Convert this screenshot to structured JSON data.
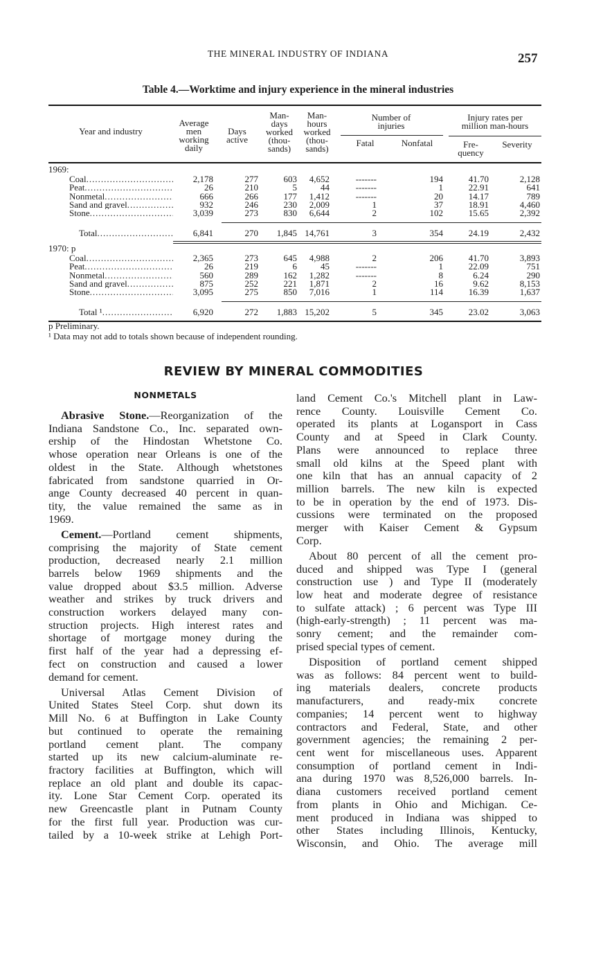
{
  "header": {
    "running_head": "THE MINERAL INDUSTRY OF INDIANA",
    "page_number": "257"
  },
  "table": {
    "title": "Table 4.—Worktime and injury experience in the mineral industries",
    "headers": {
      "year_industry": "Year and industry",
      "avg_men": [
        "Average",
        "men",
        "working",
        "daily"
      ],
      "days": [
        "Days",
        "active"
      ],
      "man_days": [
        "Man-",
        "days",
        "worked",
        "(thou-",
        "sands)"
      ],
      "man_hours": [
        "Man-",
        "hours",
        "worked",
        "(thou-",
        "sands)"
      ],
      "injuries_group": [
        "Number of",
        "injuries"
      ],
      "fatal": "Fatal",
      "nonfatal": "Nonfatal",
      "rates_group": [
        "Injury rates per",
        "million man-hours"
      ],
      "frequency": [
        "Fre-",
        "quency"
      ],
      "severity": "Severity"
    },
    "sections": [
      {
        "year": "1969:",
        "rows": [
          [
            "Coal",
            "2,178",
            "277",
            "603",
            "4,652",
            "-------",
            "194",
            "41.70",
            "2,128"
          ],
          [
            "Peat",
            "26",
            "210",
            "5",
            "44",
            "-------",
            "1",
            "22.91",
            "641"
          ],
          [
            "Nonmetal",
            "666",
            "266",
            "177",
            "1,412",
            "-------",
            "20",
            "14.17",
            "789"
          ],
          [
            "Sand and gravel",
            "932",
            "246",
            "230",
            "2,009",
            "1",
            "37",
            "18.91",
            "4,460"
          ],
          [
            "Stone",
            "3,039",
            "273",
            "830",
            "6,644",
            "2",
            "102",
            "15.65",
            "2,392"
          ]
        ],
        "total": [
          "Total",
          "6,841",
          "270",
          "1,845",
          "14,761",
          "3",
          "354",
          "24.19",
          "2,432"
        ]
      },
      {
        "year": "1970: p",
        "rows": [
          [
            "Coal",
            "2,365",
            "273",
            "645",
            "4,988",
            "2",
            "206",
            "41.70",
            "3,893"
          ],
          [
            "Peat",
            "26",
            "219",
            "6",
            "45",
            "-------",
            "1",
            "22.09",
            "751"
          ],
          [
            "Nonmetal",
            "560",
            "289",
            "162",
            "1,282",
            "-------",
            "8",
            "6.24",
            "290"
          ],
          [
            "Sand and gravel",
            "875",
            "252",
            "221",
            "1,871",
            "2",
            "16",
            "9.62",
            "8,153"
          ],
          [
            "Stone",
            "3,095",
            "275",
            "850",
            "7,016",
            "1",
            "114",
            "16.39",
            "1,637"
          ]
        ],
        "total": [
          "Total ¹",
          "6,920",
          "272",
          "1,883",
          "15,202",
          "5",
          "345",
          "23.02",
          "3,063"
        ]
      }
    ],
    "footnotes": [
      "p Preliminary.",
      "¹ Data may not add to totals shown because of independent rounding."
    ]
  },
  "section_title": "REVIEW BY MINERAL COMMODITIES",
  "subhead": "NONMETALS",
  "columns": {
    "left": [
      {
        "lead": "Abrasive Stone.",
        "lines": [
          "—Reorganization of the",
          "Indiana Sandstone Co., Inc. separated own-",
          "ership of the Hindostan Whetstone Co.",
          "whose operation near Orleans is one of the",
          "oldest in the State. Although whetstones",
          "fabricated from sandstone quarried in Or-",
          "ange County decreased 40 percent in quan-",
          "tity, the value remained the same as in",
          "1969."
        ]
      },
      {
        "lead": "Cement.",
        "lines": [
          "—Portland cement shipments,",
          "comprising the majority of State cement",
          "production, decreased nearly 2.1 million",
          "barrels below 1969 shipments and the",
          "value dropped about $3.5 million. Adverse",
          "weather and strikes by truck drivers and",
          "construction workers delayed many con-",
          "struction projects. High interest rates and",
          "shortage of mortgage money during the",
          "first half of the year had a depressing ef-",
          "fect on construction and caused a lower",
          "demand for cement."
        ]
      },
      {
        "lead": "",
        "lines": [
          "Universal Atlas Cement Division of",
          "United States Steel Corp. shut down its",
          "Mill No. 6 at Buffington in Lake County",
          "but continued to operate the remaining",
          "portland cement plant. The company",
          "started up its new calcium-aluminate re-",
          "fractory facilities at Buffington, which will",
          "replace an old plant and double its capac-",
          "ity. Lone Star Cement Corp. operated its",
          "new Greencastle plant in Putnam County",
          "for the first full year. Production was cur-",
          "tailed by a 10-week strike at Lehigh Port-"
        ],
        "continues": true
      }
    ],
    "right": [
      {
        "lead": "",
        "noindent": true,
        "lines": [
          "land Cement Co.'s Mitchell plant in Law-",
          "rence County. Louisville Cement Co.",
          "operated its plants at Logansport in Cass",
          "County and at Speed in Clark County.",
          "Plans were announced to replace three",
          "small old kilns at the Speed plant with",
          "one kiln that has an annual capacity of 2",
          "million barrels. The new kiln is expected",
          "to be in operation by the end of 1973. Dis-",
          "cussions were terminated on the proposed",
          "merger with Kaiser Cement & Gypsum",
          "Corp."
        ]
      },
      {
        "lead": "",
        "lines": [
          "About 80 percent of all the cement pro-",
          "duced and shipped was Type I (general",
          "construction use ) and Type II (moderately",
          "low heat and moderate degree of resistance",
          "to sulfate attack) ; 6 percent was Type III",
          "(high-early-strength) ; 11 percent was ma-",
          "sonry cement; and the remainder com-",
          "prised special types of cement."
        ]
      },
      {
        "lead": "",
        "lines": [
          "Disposition of portland cement shipped",
          "was as follows: 84 percent went to build-",
          "ing materials dealers, concrete products",
          "manufacturers, and ready-mix concrete",
          "companies; 14 percent went to highway",
          "contractors and Federal, State, and other",
          "government agencies; the remaining 2 per-",
          "cent went for miscellaneous uses. Apparent",
          "consumption of portland cement in Indi-",
          "ana during 1970 was 8,526,000 barrels. In-",
          "diana customers received portland cement",
          "from plants in Ohio and Michigan. Ce-",
          "ment produced in Indiana was shipped to",
          "other States including Illinois, Kentucky,",
          "Wisconsin, and Ohio. The average mill"
        ],
        "continues": true
      }
    ]
  }
}
